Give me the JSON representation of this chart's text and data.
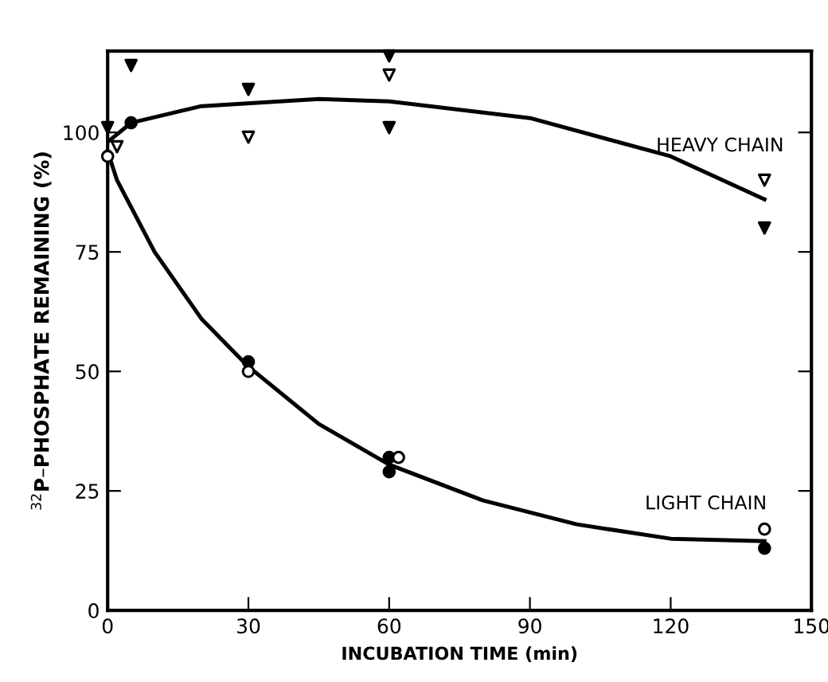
{
  "chart_data": {
    "type": "scatter",
    "xlabel": "INCUBATION TIME (min)",
    "ylabel": "$^{32}$P–PHOSPHATE REMAINING (%)",
    "xlim": [
      0,
      150
    ],
    "xticks": [
      0,
      30,
      60,
      90,
      120,
      150
    ],
    "ylim": [
      0,
      117
    ],
    "yticks": [
      0,
      25,
      50,
      75,
      100
    ],
    "grid": false,
    "series": [
      {
        "marker": "triangle",
        "color": "#000000",
        "x": [
          0,
          5,
          30,
          60,
          60,
          140
        ],
        "values": [
          101,
          114,
          109,
          116,
          101,
          80
        ]
      },
      {
        "marker": "triangle",
        "color": "#ffffff",
        "x": [
          2,
          30,
          60,
          140
        ],
        "values": [
          97,
          99,
          112,
          90
        ]
      },
      {
        "marker": "circle",
        "color": "#000000",
        "x": [
          5,
          30,
          60,
          60,
          140
        ],
        "values": [
          102,
          52,
          32,
          29,
          13
        ]
      },
      {
        "marker": "circle",
        "color": "#ffffff",
        "x": [
          0,
          30,
          62,
          140
        ],
        "values": [
          95,
          50,
          32,
          17
        ]
      },
      {
        "type": "line",
        "marker": "none",
        "color": "#000000",
        "x": [
          0,
          5,
          20,
          45,
          60,
          90,
          120,
          140
        ],
        "values": [
          98,
          102,
          105.5,
          107,
          106.5,
          103,
          95,
          86
        ]
      },
      {
        "type": "line",
        "marker": "none",
        "color": "#000000",
        "x": [
          0,
          2,
          10,
          20,
          30,
          45,
          60,
          80,
          100,
          120,
          140
        ],
        "values": [
          96,
          90,
          75,
          61,
          51,
          39,
          30.5,
          23,
          18,
          15,
          14.5
        ]
      }
    ],
    "annotations": [
      "HEAVY CHAIN",
      "LIGHT CHAIN"
    ]
  }
}
